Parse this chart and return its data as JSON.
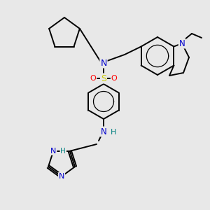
{
  "background_color": "#e8e8e8",
  "bond_color": "#000000",
  "atom_colors": {
    "N": "#0000cc",
    "S": "#cccc00",
    "O": "#ff0000",
    "H": "#008080",
    "C": "#000000"
  },
  "figsize": [
    3.0,
    3.0
  ],
  "dpi": 100
}
